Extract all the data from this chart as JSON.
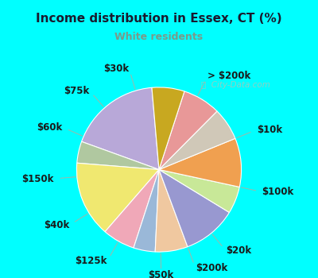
{
  "title": "Income distribution in Essex, CT (%)",
  "subtitle": "White residents",
  "title_color": "#1a1a2e",
  "subtitle_color": "#7a9a8a",
  "bg_top_color": "#00FFFF",
  "chart_bg_gradient_top": "#e8f5f0",
  "chart_bg_gradient_bottom": "#c8e8d8",
  "watermark": "City-Data.com",
  "labels": [
    "> $200k",
    "$10k",
    "$100k",
    "$20k",
    "$200k",
    "$50k",
    "$125k",
    "$40k",
    "$150k",
    "$60k",
    "$75k",
    "$30k"
  ],
  "values": [
    17,
    4,
    14,
    6,
    4,
    6,
    10,
    5,
    9,
    6,
    7,
    6
  ],
  "colors": [
    "#b8a8d8",
    "#b0c8a0",
    "#f0e870",
    "#f0a8b8",
    "#9ab8d8",
    "#f0c8a0",
    "#9898d0",
    "#c8e898",
    "#f0a050",
    "#d0c8b8",
    "#e89898",
    "#c8a820"
  ],
  "startangle": 95,
  "label_fontsize": 8.5
}
